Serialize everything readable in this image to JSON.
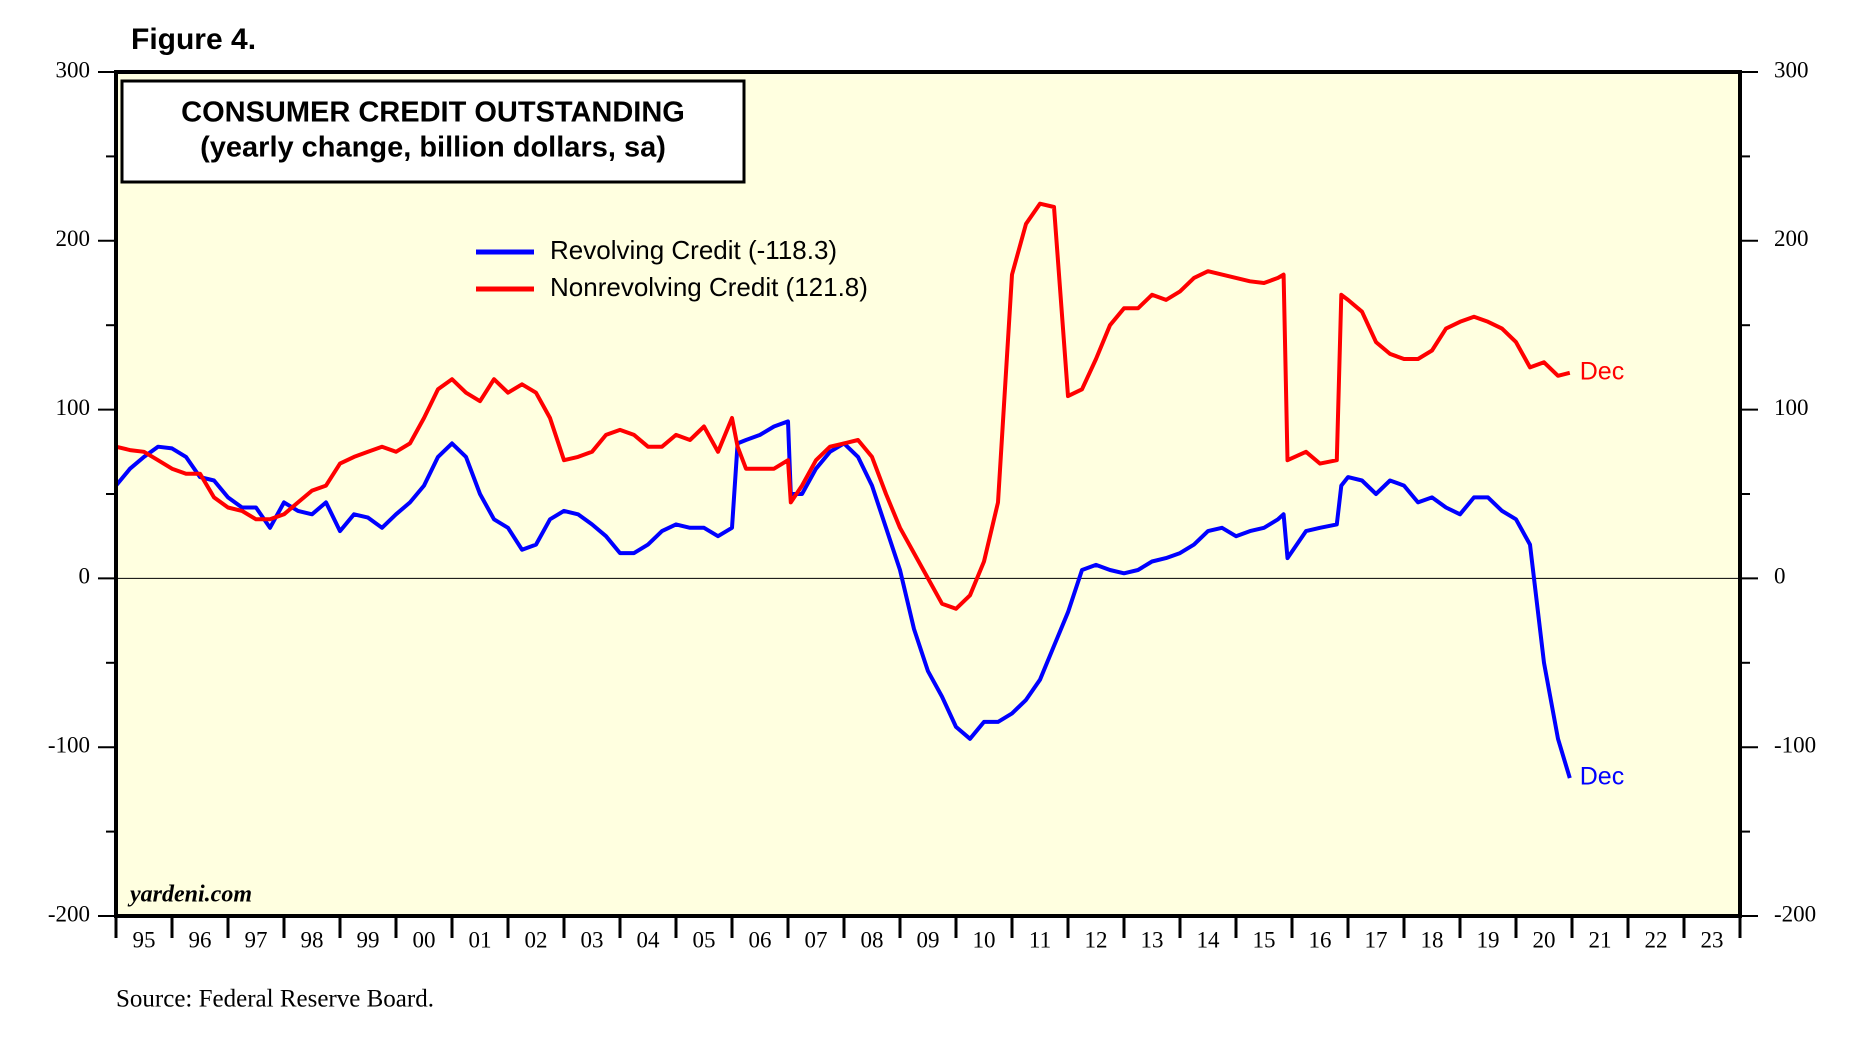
{
  "figure_label": "Figure 4.",
  "source": "Source: Federal Reserve Board.",
  "chart_data": {
    "type": "line",
    "title": "CONSUMER CREDIT OUTSTANDING",
    "subtitle": "(yearly change, billion dollars, sa)",
    "watermark": "yardeni.com",
    "background": "#ffffe0",
    "hline": 0,
    "xlim": [
      1995,
      2024
    ],
    "xticks": [
      {
        "value": 1995.5,
        "label": "95"
      },
      {
        "value": 1996.5,
        "label": "96"
      },
      {
        "value": 1997.5,
        "label": "97"
      },
      {
        "value": 1998.5,
        "label": "98"
      },
      {
        "value": 1999.5,
        "label": "99"
      },
      {
        "value": 2000.5,
        "label": "00"
      },
      {
        "value": 2001.5,
        "label": "01"
      },
      {
        "value": 2002.5,
        "label": "02"
      },
      {
        "value": 2003.5,
        "label": "03"
      },
      {
        "value": 2004.5,
        "label": "04"
      },
      {
        "value": 2005.5,
        "label": "05"
      },
      {
        "value": 2006.5,
        "label": "06"
      },
      {
        "value": 2007.5,
        "label": "07"
      },
      {
        "value": 2008.5,
        "label": "08"
      },
      {
        "value": 2009.5,
        "label": "09"
      },
      {
        "value": 2010.5,
        "label": "10"
      },
      {
        "value": 2011.5,
        "label": "11"
      },
      {
        "value": 2012.5,
        "label": "12"
      },
      {
        "value": 2013.5,
        "label": "13"
      },
      {
        "value": 2014.5,
        "label": "14"
      },
      {
        "value": 2015.5,
        "label": "15"
      },
      {
        "value": 2016.5,
        "label": "16"
      },
      {
        "value": 2017.5,
        "label": "17"
      },
      {
        "value": 2018.5,
        "label": "18"
      },
      {
        "value": 2019.5,
        "label": "19"
      },
      {
        "value": 2020.5,
        "label": "20"
      },
      {
        "value": 2021.5,
        "label": "21"
      },
      {
        "value": 2022.5,
        "label": "22"
      },
      {
        "value": 2023.5,
        "label": "23"
      }
    ],
    "ylim": [
      -200,
      300
    ],
    "yticks": [
      -200,
      -100,
      0,
      100,
      200,
      300
    ],
    "y2lim": [
      -200,
      300
    ],
    "y2ticks": [
      -200,
      -100,
      0,
      100,
      200,
      300
    ],
    "x": [
      1995,
      1995.25,
      1995.5,
      1995.75,
      1996,
      1996.25,
      1996.5,
      1996.75,
      1997,
      1997.25,
      1997.5,
      1997.75,
      1998,
      1998.25,
      1998.5,
      1998.75,
      1999,
      1999.25,
      1999.5,
      1999.75,
      2000,
      2000.25,
      2000.5,
      2000.75,
      2001,
      2001.25,
      2001.5,
      2001.75,
      2002,
      2002.25,
      2002.5,
      2002.75,
      2003,
      2003.25,
      2003.5,
      2003.75,
      2004,
      2004.25,
      2004.5,
      2004.75,
      2005,
      2005.25,
      2005.5,
      2005.75,
      2006,
      2006.1,
      2006.25,
      2006.5,
      2006.75,
      2007,
      2007.05,
      2007.25,
      2007.5,
      2007.75,
      2008,
      2008.25,
      2008.5,
      2008.75,
      2009,
      2009.25,
      2009.5,
      2009.75,
      2010,
      2010.25,
      2010.5,
      2010.75,
      2011,
      2011.25,
      2011.5,
      2011.75,
      2012,
      2012.25,
      2012.5,
      2012.75,
      2013,
      2013.25,
      2013.5,
      2013.75,
      2014,
      2014.25,
      2014.5,
      2014.75,
      2015,
      2015.25,
      2015.5,
      2015.75,
      2015.85,
      2015.92,
      2016.25,
      2016.5,
      2016.8,
      2016.88,
      2017,
      2017.25,
      2017.5,
      2017.75,
      2018,
      2018.25,
      2018.5,
      2018.75,
      2019,
      2019.25,
      2019.5,
      2019.75,
      2020,
      2020.25,
      2020.5,
      2020.75,
      2020.96
    ],
    "series": [
      {
        "name": "Revolving Credit (-118.3)",
        "color": "#0000ff",
        "end_label": "Dec",
        "values": [
          55,
          65,
          72,
          78,
          77,
          72,
          60,
          58,
          48,
          42,
          42,
          30,
          45,
          40,
          38,
          45,
          28,
          38,
          36,
          30,
          38,
          45,
          55,
          72,
          80,
          72,
          50,
          35,
          30,
          17,
          20,
          35,
          40,
          38,
          32,
          25,
          15,
          15,
          20,
          28,
          32,
          30,
          30,
          25,
          30,
          80,
          82,
          85,
          90,
          93,
          50,
          50,
          65,
          75,
          80,
          72,
          55,
          30,
          5,
          -30,
          -55,
          -70,
          -88,
          -95,
          -85,
          -85,
          -80,
          -72,
          -60,
          -40,
          -20,
          5,
          8,
          5,
          3,
          5,
          10,
          12,
          15,
          20,
          28,
          30,
          25,
          28,
          30,
          35,
          38,
          12,
          28,
          30,
          32,
          55,
          60,
          58,
          50,
          58,
          55,
          45,
          48,
          42,
          38,
          48,
          48,
          40,
          35,
          20,
          -50,
          -95,
          -118.3
        ]
      },
      {
        "name": "Nonrevolving Credit (121.8)",
        "color": "#ff0000",
        "end_label": "Dec",
        "values": [
          78,
          76,
          75,
          70,
          65,
          62,
          62,
          48,
          42,
          40,
          35,
          35,
          38,
          45,
          52,
          55,
          68,
          72,
          75,
          78,
          75,
          80,
          95,
          112,
          118,
          110,
          105,
          118,
          110,
          115,
          110,
          95,
          70,
          72,
          75,
          85,
          88,
          85,
          78,
          78,
          85,
          82,
          90,
          75,
          95,
          78,
          65,
          65,
          65,
          70,
          45,
          55,
          70,
          78,
          80,
          82,
          72,
          50,
          30,
          15,
          0,
          -15,
          -18,
          -10,
          10,
          45,
          180,
          210,
          222,
          220,
          108,
          112,
          130,
          150,
          160,
          160,
          168,
          165,
          170,
          178,
          182,
          180,
          178,
          176,
          175,
          178,
          180,
          70,
          75,
          68,
          70,
          168,
          165,
          158,
          140,
          133,
          130,
          130,
          135,
          148,
          152,
          155,
          152,
          148,
          140,
          125,
          128,
          120,
          121.8
        ]
      }
    ]
  }
}
